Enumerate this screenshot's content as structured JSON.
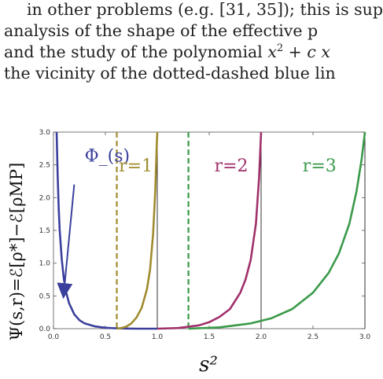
{
  "text": {
    "lines": [
      {
        "before": "in other problems (e.g. [31, 35]); this is sup",
        "math": "",
        "after": ""
      },
      {
        "before": "analysis of the shape of the effective p",
        "math": "",
        "after": ""
      },
      {
        "before": "and the study of the polynomial ",
        "math": "x",
        "sup": "2",
        "after": " + ",
        "math2": "c x"
      },
      {
        "before": "the vicinity of the dotted-dashed blue lin",
        "math": "",
        "after": ""
      }
    ]
  },
  "chart_data": {
    "type": "line",
    "xlabel": "s²",
    "ylabel": "Ψ(s,r)=ℰ[ρ*]−ℰ[ρMP]",
    "xlim": [
      0,
      3
    ],
    "ylim": [
      0,
      3
    ],
    "x_ticks": [
      "0.0",
      "0.5",
      "1.0",
      "1.5",
      "2.0",
      "2.5",
      "3.0"
    ],
    "y_ticks": [
      "0.0",
      "0.5",
      "1.0",
      "1.5",
      "2.0",
      "2.5",
      "3.0"
    ],
    "grid": false,
    "colors": {
      "phi": "#3b3f9c",
      "r1": "#a08b2e",
      "r2": "#a0306b",
      "r3": "#3a9a4a",
      "vline": "#333333"
    },
    "series": [
      {
        "name": "Φ_(s)",
        "x": [
          0.03,
          0.04,
          0.05,
          0.06,
          0.08,
          0.1,
          0.12,
          0.15,
          0.2,
          0.25,
          0.3,
          0.4,
          0.5,
          0.6,
          0.7,
          0.8,
          0.9,
          1.0
        ],
        "y": [
          3.0,
          2.35,
          1.85,
          1.5,
          1.05,
          0.76,
          0.57,
          0.39,
          0.22,
          0.13,
          0.08,
          0.035,
          0.015,
          0.006,
          0.002,
          0.0005,
          0.0,
          0.0
        ]
      },
      {
        "name": "r=1",
        "x": [
          0.61,
          0.65,
          0.7,
          0.75,
          0.8,
          0.85,
          0.9,
          0.93,
          0.96,
          0.98,
          0.995,
          1.0
        ],
        "y": [
          0.0,
          0.01,
          0.03,
          0.08,
          0.17,
          0.32,
          0.6,
          0.9,
          1.45,
          2.1,
          2.8,
          3.0
        ]
      },
      {
        "name": "r=2",
        "x": [
          1.0,
          1.2,
          1.4,
          1.5,
          1.6,
          1.7,
          1.8,
          1.85,
          1.9,
          1.95,
          1.98,
          2.0
        ],
        "y": [
          0.0,
          0.01,
          0.05,
          0.1,
          0.18,
          0.3,
          0.55,
          0.75,
          1.05,
          1.6,
          2.3,
          3.0
        ]
      },
      {
        "name": "r=3",
        "x": [
          1.3,
          1.6,
          1.9,
          2.1,
          2.3,
          2.5,
          2.65,
          2.75,
          2.85,
          2.92,
          2.97,
          3.0
        ],
        "y": [
          0.0,
          0.02,
          0.08,
          0.16,
          0.3,
          0.55,
          0.85,
          1.15,
          1.6,
          2.1,
          2.6,
          3.0
        ]
      }
    ],
    "dashed_lines": [
      {
        "x": 0.61,
        "color": "#a08b2e"
      },
      {
        "x": 1.3,
        "color": "#3a9a4a"
      }
    ],
    "solid_lines": [
      {
        "x": 1.0
      },
      {
        "x": 2.0
      },
      {
        "x": 3.0
      }
    ],
    "annotations": [
      {
        "text": "Φ_(s)",
        "x": 0.3,
        "y": 2.55,
        "color": "#3b3f9c"
      },
      {
        "text": "r=1",
        "x": 0.63,
        "y": 2.4,
        "color": "#a08b2e"
      },
      {
        "text": "r=2",
        "x": 1.55,
        "y": 2.4,
        "color": "#a0306b"
      },
      {
        "text": "r=3",
        "x": 2.4,
        "y": 2.4,
        "color": "#3a9a4a"
      }
    ],
    "arrow": {
      "from": [
        0.2,
        2.2
      ],
      "to": [
        0.1,
        0.55
      ],
      "color": "#3b3f9c"
    }
  }
}
